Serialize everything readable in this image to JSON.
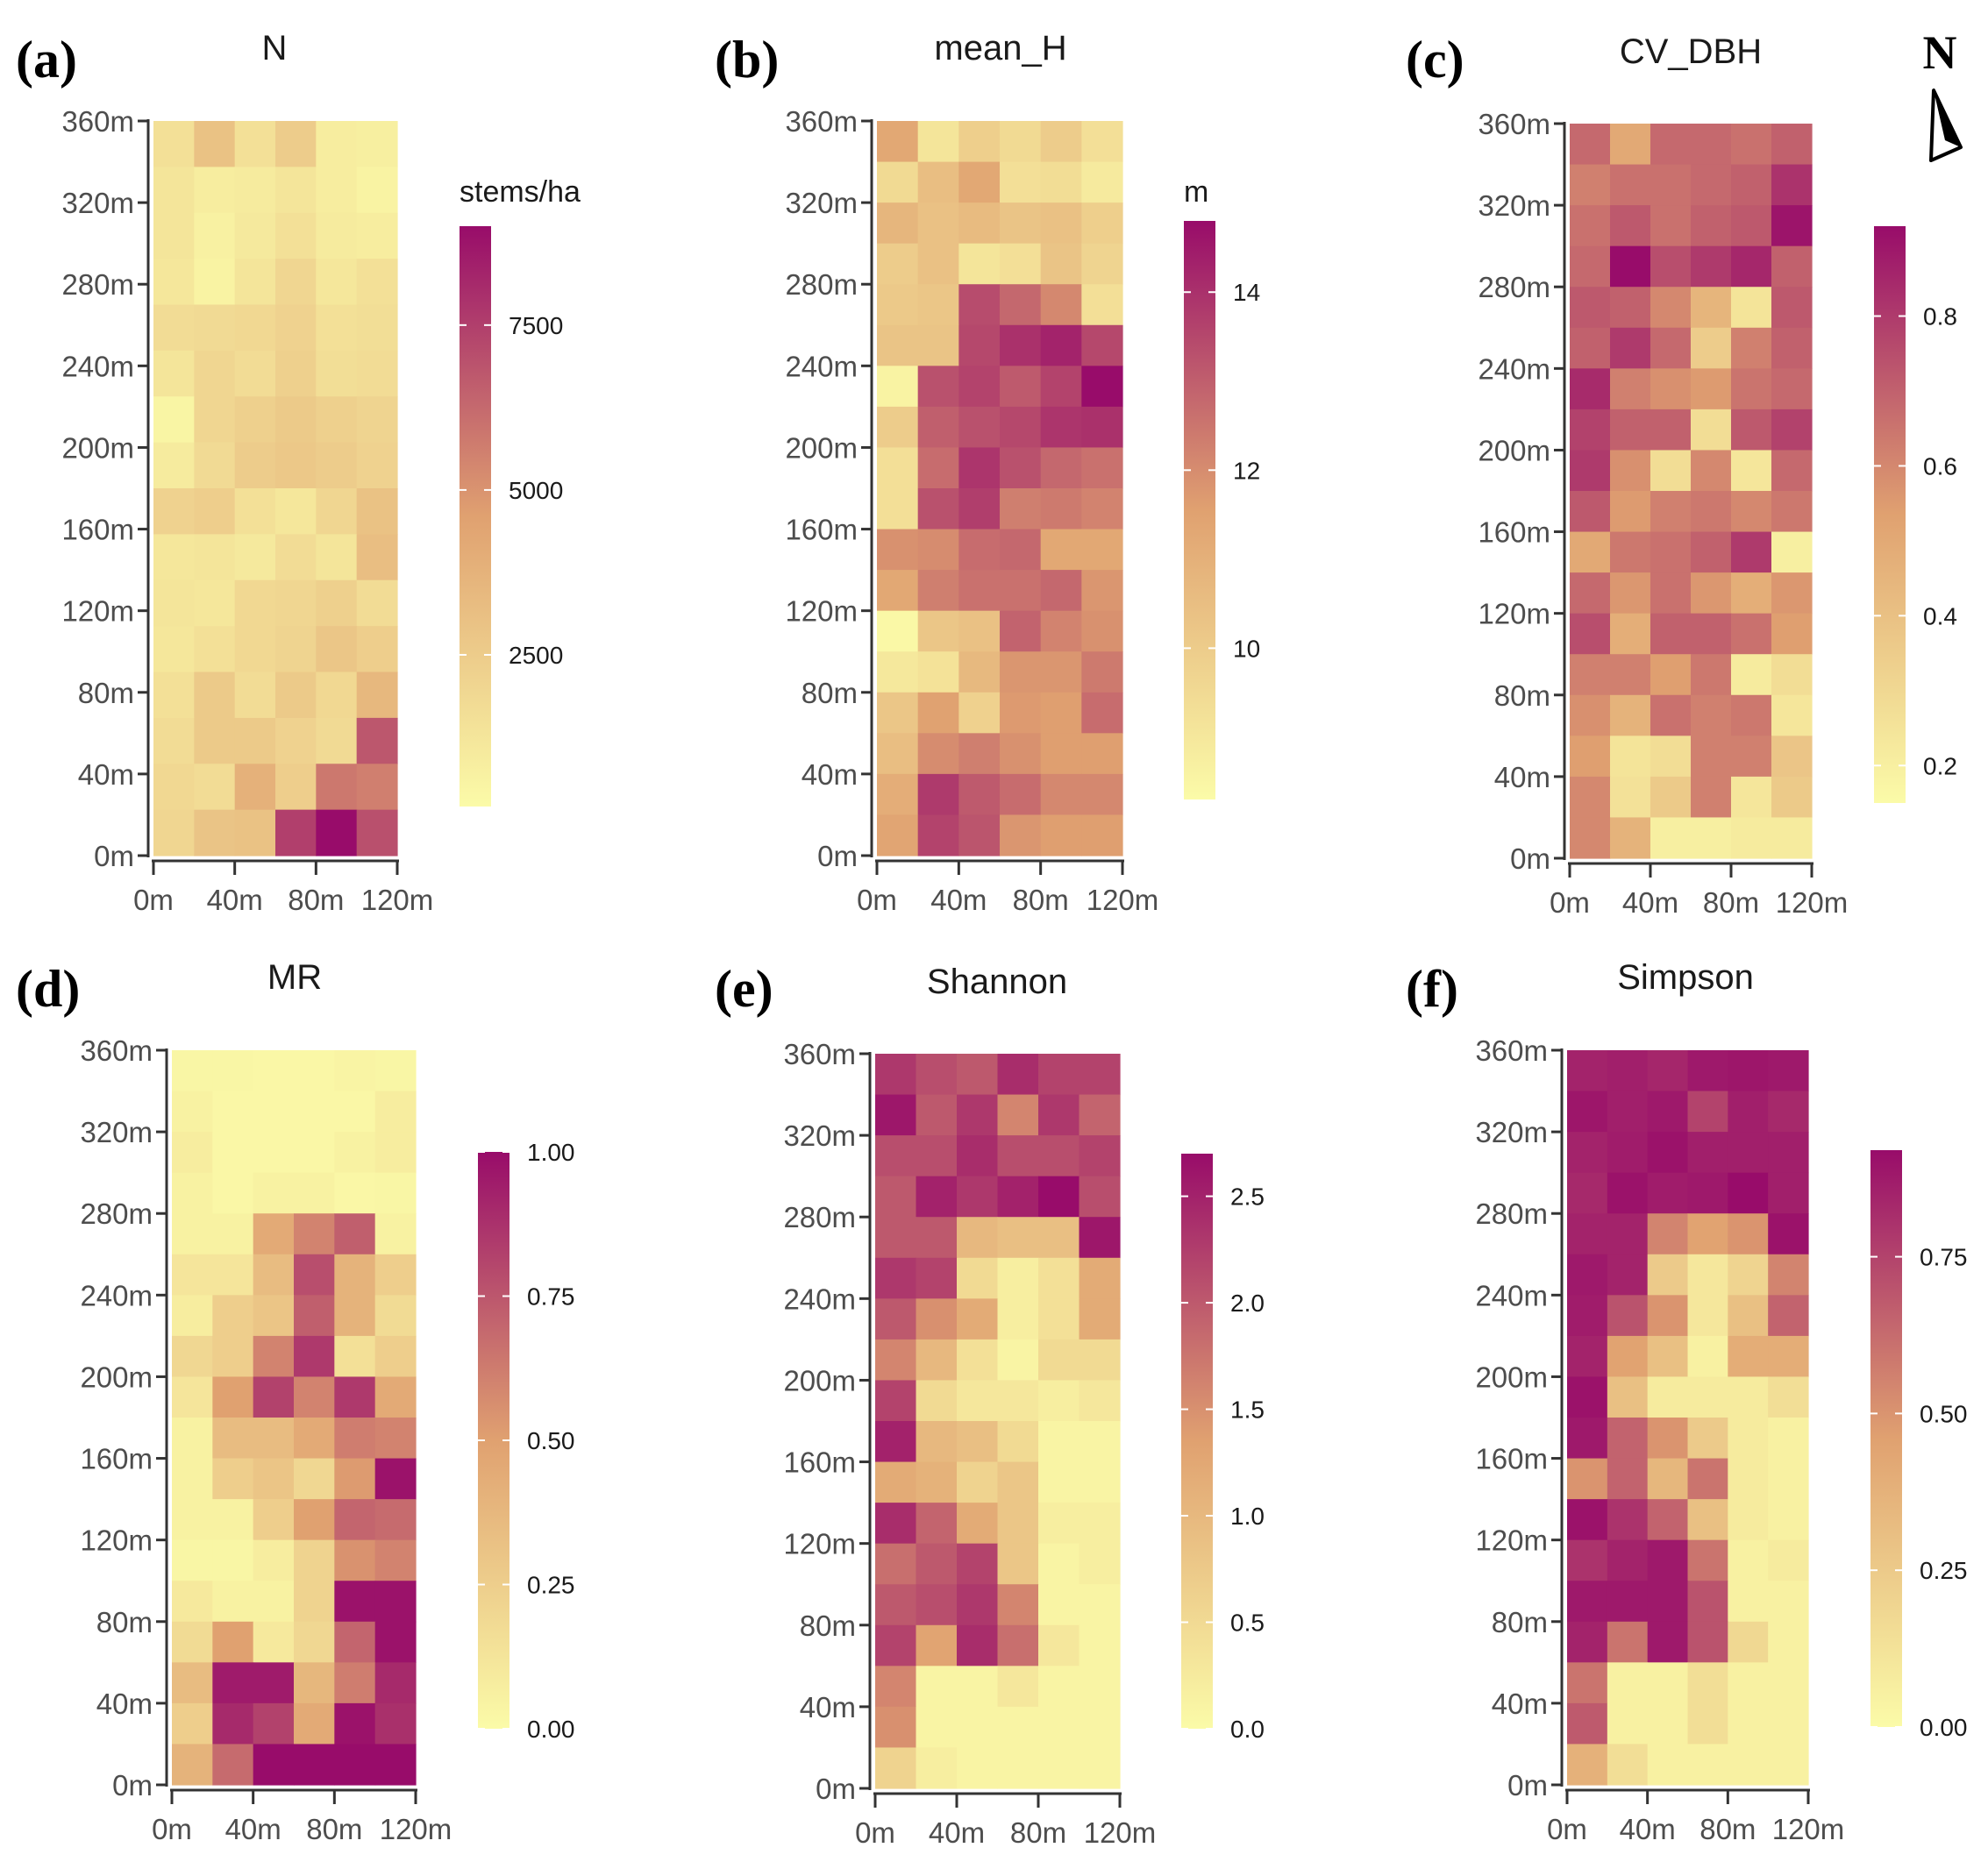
{
  "colors": {
    "low": "#fbfba8",
    "mid": "#e0a170",
    "high": "#980c6a",
    "axis": "#333333"
  },
  "north_arrow": {
    "label": "N",
    "icon": "north-arrow-icon"
  },
  "chart_data": [
    {
      "id": "a",
      "panel_label": "(a)",
      "type": "heatmap",
      "title": "N",
      "x_ticks": [
        "0m",
        "40m",
        "80m",
        "120m"
      ],
      "y_ticks": [
        "0m",
        "40m",
        "80m",
        "120m",
        "160m",
        "200m",
        "240m",
        "280m",
        "320m",
        "360m"
      ],
      "legend": {
        "title": "stems/ha",
        "min": 200,
        "max": 9000,
        "ticks": [
          2500,
          5000,
          7500
        ],
        "tick_labels": [
          "2500",
          "5000",
          "7500"
        ]
      },
      "grid": [
        [
          1500,
          3000,
          1500,
          2500,
          900,
          800
        ],
        [
          1300,
          900,
          1000,
          1300,
          900,
          600
        ],
        [
          1300,
          700,
          1100,
          1500,
          1000,
          900
        ],
        [
          1200,
          600,
          1300,
          2000,
          1200,
          1500
        ],
        [
          1700,
          1800,
          1900,
          2200,
          1500,
          1600
        ],
        [
          1300,
          2000,
          1700,
          2300,
          1600,
          1700
        ],
        [
          500,
          2000,
          2300,
          2600,
          2300,
          2100
        ],
        [
          1000,
          1800,
          2500,
          2700,
          2500,
          2200
        ],
        [
          2200,
          2400,
          1500,
          1200,
          2000,
          3000
        ],
        [
          1200,
          1300,
          1100,
          1700,
          1300,
          3200
        ],
        [
          1300,
          1200,
          1900,
          2000,
          2300,
          1700
        ],
        [
          1200,
          1500,
          1900,
          2100,
          2800,
          2400
        ],
        [
          1500,
          2600,
          1700,
          2600,
          1900,
          3500
        ],
        [
          1700,
          2600,
          2600,
          2200,
          1800,
          6800
        ],
        [
          1900,
          1700,
          3800,
          2400,
          5800,
          5600
        ],
        [
          2000,
          2900,
          3000,
          7500,
          9000,
          7000
        ]
      ]
    },
    {
      "id": "b",
      "panel_label": "(b)",
      "type": "heatmap",
      "title": "mean_H",
      "x_ticks": [
        "0m",
        "40m",
        "80m",
        "120m"
      ],
      "y_ticks": [
        "0m",
        "40m",
        "80m",
        "120m",
        "160m",
        "200m",
        "240m",
        "280m",
        "320m",
        "360m"
      ],
      "legend": {
        "title": "m",
        "min": 8.3,
        "max": 14.8,
        "ticks": [
          10,
          12,
          14
        ],
        "tick_labels": [
          "10",
          "12",
          "14"
        ]
      },
      "grid": [
        [
          11.3,
          9.1,
          9.9,
          9.5,
          10.0,
          9.3
        ],
        [
          9.5,
          10.5,
          11.3,
          9.3,
          9.4,
          8.9
        ],
        [
          10.8,
          10.4,
          10.6,
          10.3,
          10.4,
          9.9
        ],
        [
          10.0,
          10.4,
          9.1,
          9.3,
          10.3,
          9.7
        ],
        [
          10.1,
          10.2,
          13.4,
          12.8,
          12.1,
          9.3
        ],
        [
          10.3,
          10.3,
          13.5,
          14.0,
          14.3,
          13.5
        ],
        [
          8.6,
          13.3,
          13.6,
          13.1,
          13.6,
          14.8
        ],
        [
          10.0,
          13.0,
          13.3,
          13.5,
          13.9,
          14.0
        ],
        [
          9.3,
          12.7,
          13.9,
          13.3,
          12.8,
          12.6
        ],
        [
          9.3,
          13.3,
          13.7,
          12.3,
          12.4,
          12.2
        ],
        [
          11.9,
          12.0,
          12.7,
          12.8,
          11.3,
          11.3
        ],
        [
          11.3,
          12.3,
          12.6,
          12.6,
          12.8,
          11.8
        ],
        [
          8.4,
          10.2,
          10.4,
          12.9,
          12.2,
          11.9
        ],
        [
          9.0,
          9.2,
          10.7,
          11.8,
          11.8,
          12.4
        ],
        [
          10.2,
          11.5,
          9.8,
          11.7,
          11.6,
          12.7
        ],
        [
          10.5,
          12.0,
          12.3,
          11.9,
          11.6,
          11.6
        ],
        [
          11.1,
          13.8,
          13.1,
          12.7,
          12.1,
          12.1
        ],
        [
          11.4,
          13.6,
          13.2,
          11.8,
          11.6,
          11.6
        ]
      ]
    },
    {
      "id": "c",
      "panel_label": "(c)",
      "type": "heatmap",
      "title": "CV_DBH",
      "x_ticks": [
        "0m",
        "40m",
        "80m",
        "120m"
      ],
      "y_ticks": [
        "0m",
        "40m",
        "80m",
        "120m",
        "160m",
        "200m",
        "240m",
        "280m",
        "320m",
        "360m"
      ],
      "legend": {
        "title": "",
        "min": 0.15,
        "max": 0.92,
        "ticks": [
          0.2,
          0.4,
          0.6,
          0.8
        ],
        "tick_labels": [
          "0.2",
          "0.4",
          "0.6",
          "0.8"
        ]
      },
      "grid": [
        [
          0.68,
          0.5,
          0.68,
          0.68,
          0.66,
          0.7
        ],
        [
          0.62,
          0.66,
          0.66,
          0.68,
          0.7,
          0.82
        ],
        [
          0.66,
          0.72,
          0.66,
          0.7,
          0.72,
          0.9
        ],
        [
          0.68,
          0.92,
          0.75,
          0.8,
          0.85,
          0.7
        ],
        [
          0.72,
          0.7,
          0.6,
          0.45,
          0.25,
          0.72
        ],
        [
          0.7,
          0.8,
          0.68,
          0.35,
          0.62,
          0.7
        ],
        [
          0.84,
          0.62,
          0.58,
          0.55,
          0.65,
          0.68
        ],
        [
          0.78,
          0.7,
          0.7,
          0.28,
          0.72,
          0.78
        ],
        [
          0.8,
          0.58,
          0.28,
          0.6,
          0.24,
          0.68
        ],
        [
          0.72,
          0.55,
          0.62,
          0.64,
          0.6,
          0.64
        ],
        [
          0.5,
          0.64,
          0.66,
          0.7,
          0.8,
          0.2
        ],
        [
          0.68,
          0.56,
          0.66,
          0.56,
          0.48,
          0.56
        ],
        [
          0.75,
          0.48,
          0.7,
          0.7,
          0.66,
          0.54
        ],
        [
          0.62,
          0.62,
          0.54,
          0.64,
          0.22,
          0.28
        ],
        [
          0.58,
          0.46,
          0.66,
          0.62,
          0.64,
          0.24
        ],
        [
          0.54,
          0.25,
          0.28,
          0.62,
          0.62,
          0.38
        ],
        [
          0.6,
          0.26,
          0.36,
          0.62,
          0.24,
          0.36
        ],
        [
          0.6,
          0.46,
          0.2,
          0.2,
          0.22,
          0.22
        ]
      ]
    },
    {
      "id": "d",
      "panel_label": "(d)",
      "type": "heatmap",
      "title": "MR",
      "x_ticks": [
        "0m",
        "40m",
        "80m",
        "120m"
      ],
      "y_ticks": [
        "0m",
        "40m",
        "80m",
        "120m",
        "160m",
        "200m",
        "240m",
        "280m",
        "320m",
        "360m"
      ],
      "legend": {
        "title": "",
        "min": 0,
        "max": 1,
        "ticks": [
          0,
          0.25,
          0.5,
          0.75,
          1
        ],
        "tick_labels": [
          "0.00",
          "0.25",
          "0.50",
          "0.75",
          "1.00"
        ]
      },
      "grid": [
        [
          0.03,
          0.03,
          0.02,
          0.02,
          0.04,
          0.03
        ],
        [
          0.05,
          0.02,
          0.02,
          0.02,
          0.02,
          0.08
        ],
        [
          0.08,
          0.02,
          0.02,
          0.02,
          0.05,
          0.08
        ],
        [
          0.05,
          0.02,
          0.05,
          0.05,
          0.02,
          0.03
        ],
        [
          0.05,
          0.05,
          0.45,
          0.6,
          0.72,
          0.05
        ],
        [
          0.12,
          0.12,
          0.35,
          0.78,
          0.4,
          0.25
        ],
        [
          0.08,
          0.25,
          0.3,
          0.72,
          0.4,
          0.18
        ],
        [
          0.2,
          0.25,
          0.6,
          0.85,
          0.15,
          0.25
        ],
        [
          0.12,
          0.5,
          0.82,
          0.6,
          0.85,
          0.45
        ],
        [
          0.05,
          0.35,
          0.35,
          0.45,
          0.62,
          0.6
        ],
        [
          0.05,
          0.25,
          0.3,
          0.2,
          0.52,
          0.98
        ],
        [
          0.05,
          0.05,
          0.25,
          0.5,
          0.7,
          0.68
        ],
        [
          0.03,
          0.03,
          0.08,
          0.22,
          0.55,
          0.6
        ],
        [
          0.1,
          0.05,
          0.05,
          0.22,
          0.98,
          0.98
        ],
        [
          0.18,
          0.5,
          0.1,
          0.2,
          0.7,
          0.98
        ],
        [
          0.35,
          0.95,
          0.95,
          0.38,
          0.62,
          0.9
        ],
        [
          0.25,
          0.9,
          0.82,
          0.45,
          0.98,
          0.88
        ],
        [
          0.4,
          0.68,
          1.0,
          1.0,
          1.0,
          1.0
        ]
      ]
    },
    {
      "id": "e",
      "panel_label": "(e)",
      "type": "heatmap",
      "title": "Shannon",
      "x_ticks": [
        "0m",
        "40m",
        "80m",
        "120m"
      ],
      "y_ticks": [
        "0m",
        "40m",
        "80m",
        "120m",
        "160m",
        "200m",
        "240m",
        "280m",
        "320m",
        "360m"
      ],
      "legend": {
        "title": "",
        "min": 0,
        "max": 2.7,
        "ticks": [
          0,
          0.5,
          1,
          1.5,
          2,
          2.5
        ],
        "tick_labels": [
          "0.0",
          "0.5",
          "1.0",
          "1.5",
          "2.0",
          "2.5"
        ]
      },
      "grid": [
        [
          2.3,
          2.1,
          2.0,
          2.4,
          2.2,
          2.2
        ],
        [
          2.6,
          2.0,
          2.3,
          1.6,
          2.3,
          1.9
        ],
        [
          2.1,
          2.1,
          2.4,
          2.1,
          2.1,
          2.2
        ],
        [
          2.0,
          2.5,
          2.3,
          2.5,
          2.7,
          2.1
        ],
        [
          2.0,
          2.0,
          1.0,
          0.9,
          0.9,
          2.6
        ],
        [
          2.3,
          2.2,
          0.5,
          0.2,
          0.4,
          1.2
        ],
        [
          2.0,
          1.5,
          1.2,
          0.2,
          0.4,
          1.2
        ],
        [
          1.6,
          1.0,
          0.4,
          0.1,
          0.5,
          0.5
        ],
        [
          2.2,
          0.5,
          0.3,
          0.3,
          0.2,
          0.3
        ],
        [
          2.5,
          1.0,
          0.9,
          0.5,
          0.1,
          0.1
        ],
        [
          1.2,
          1.1,
          0.6,
          0.8,
          0.1,
          0.1
        ],
        [
          2.4,
          1.9,
          1.2,
          0.8,
          0.2,
          0.2
        ],
        [
          1.8,
          2.0,
          2.2,
          0.8,
          0.1,
          0.2
        ],
        [
          2.0,
          2.1,
          2.3,
          1.6,
          0.1,
          0.1
        ],
        [
          2.2,
          1.3,
          2.4,
          1.8,
          0.3,
          0.1
        ],
        [
          1.6,
          0.1,
          0.1,
          0.3,
          0.1,
          0.1
        ],
        [
          1.5,
          0.1,
          0.1,
          0.1,
          0.1,
          0.1
        ],
        [
          0.6,
          0.2,
          0.1,
          0.1,
          0.1,
          0.1
        ]
      ]
    },
    {
      "id": "f",
      "panel_label": "(f)",
      "type": "heatmap",
      "title": "Simpson",
      "x_ticks": [
        "0m",
        "40m",
        "80m",
        "120m"
      ],
      "y_ticks": [
        "0m",
        "40m",
        "80m",
        "120m",
        "160m",
        "200m",
        "240m",
        "280m",
        "320m",
        "360m"
      ],
      "legend": {
        "title": "",
        "min": 0,
        "max": 0.92,
        "ticks": [
          0,
          0.25,
          0.5,
          0.75
        ],
        "tick_labels": [
          "0.00",
          "0.25",
          "0.50",
          "0.75"
        ]
      },
      "grid": [
        [
          0.85,
          0.86,
          0.84,
          0.88,
          0.89,
          0.88
        ],
        [
          0.89,
          0.86,
          0.88,
          0.75,
          0.86,
          0.83
        ],
        [
          0.85,
          0.87,
          0.9,
          0.86,
          0.86,
          0.86
        ],
        [
          0.83,
          0.9,
          0.87,
          0.88,
          0.92,
          0.86
        ],
        [
          0.85,
          0.85,
          0.55,
          0.45,
          0.5,
          0.9
        ],
        [
          0.88,
          0.85,
          0.25,
          0.1,
          0.2,
          0.55
        ],
        [
          0.87,
          0.7,
          0.5,
          0.1,
          0.3,
          0.65
        ],
        [
          0.85,
          0.45,
          0.3,
          0.05,
          0.4,
          0.4
        ],
        [
          0.9,
          0.3,
          0.08,
          0.08,
          0.08,
          0.15
        ],
        [
          0.88,
          0.65,
          0.5,
          0.25,
          0.08,
          0.05
        ],
        [
          0.5,
          0.65,
          0.35,
          0.6,
          0.08,
          0.05
        ],
        [
          0.9,
          0.8,
          0.65,
          0.3,
          0.08,
          0.05
        ],
        [
          0.8,
          0.85,
          0.88,
          0.6,
          0.05,
          0.08
        ],
        [
          0.88,
          0.88,
          0.88,
          0.7,
          0.05,
          0.05
        ],
        [
          0.85,
          0.6,
          0.88,
          0.7,
          0.18,
          0.05
        ],
        [
          0.6,
          0.05,
          0.05,
          0.15,
          0.05,
          0.05
        ],
        [
          0.68,
          0.05,
          0.05,
          0.15,
          0.05,
          0.05
        ],
        [
          0.38,
          0.15,
          0.05,
          0.05,
          0.05,
          0.05
        ]
      ]
    }
  ]
}
